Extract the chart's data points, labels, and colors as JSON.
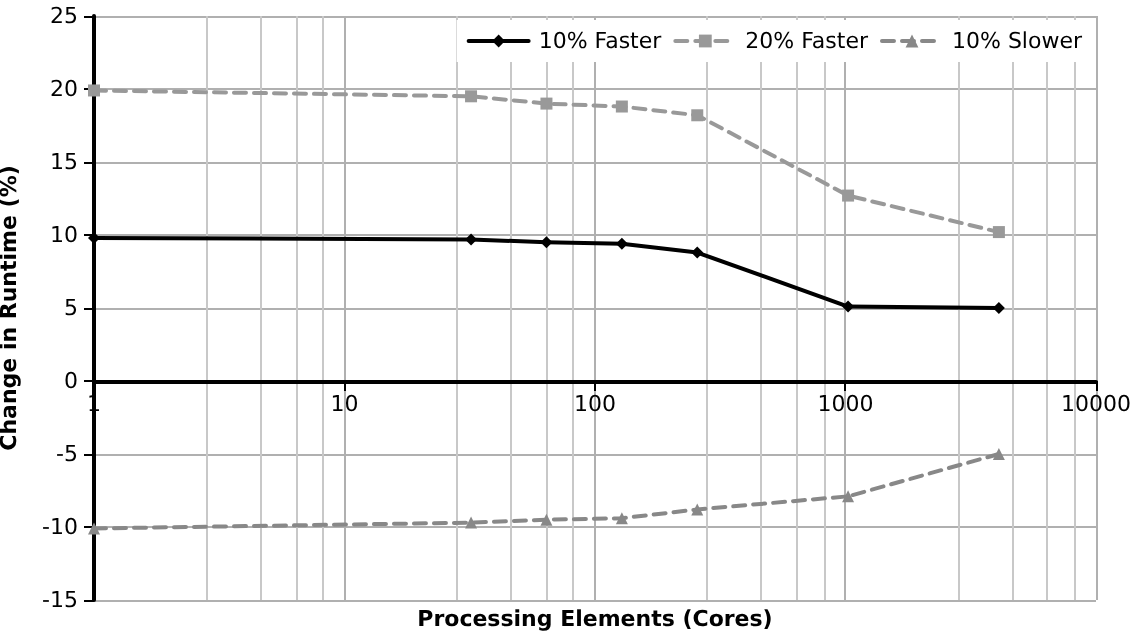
{
  "chart_data": {
    "type": "line",
    "xlabel": "Processing Elements (Cores)",
    "ylabel": "Change in Runtime (%)",
    "log": "x",
    "x": [
      1,
      32,
      64,
      128,
      256,
      1024,
      4096
    ],
    "xlim": [
      1,
      10000
    ],
    "xticks": [
      1,
      10,
      100,
      1000,
      10000
    ],
    "ylim": [
      -15,
      25
    ],
    "yticks": [
      -15,
      -10,
      -5,
      0,
      5,
      10,
      15,
      20,
      25
    ],
    "grid": true,
    "legend": "top right",
    "series": [
      {
        "name": "10% Faster",
        "color": "#000000",
        "marker": "diamond",
        "line_style": "solid",
        "values": [
          9.8,
          9.7,
          9.5,
          9.4,
          8.8,
          5.1,
          5.0
        ]
      },
      {
        "name": "20% Faster",
        "color": "#999999",
        "marker": "square",
        "line_style": "dashed",
        "values": [
          19.9,
          19.5,
          19.0,
          18.8,
          18.2,
          12.7,
          10.2
        ]
      },
      {
        "name": "10% Slower",
        "color": "#888888",
        "marker": "triangle",
        "line_style": "dashed",
        "values": [
          -10.1,
          -9.7,
          -9.5,
          -9.4,
          -8.8,
          -7.9,
          -5.0
        ]
      }
    ]
  }
}
